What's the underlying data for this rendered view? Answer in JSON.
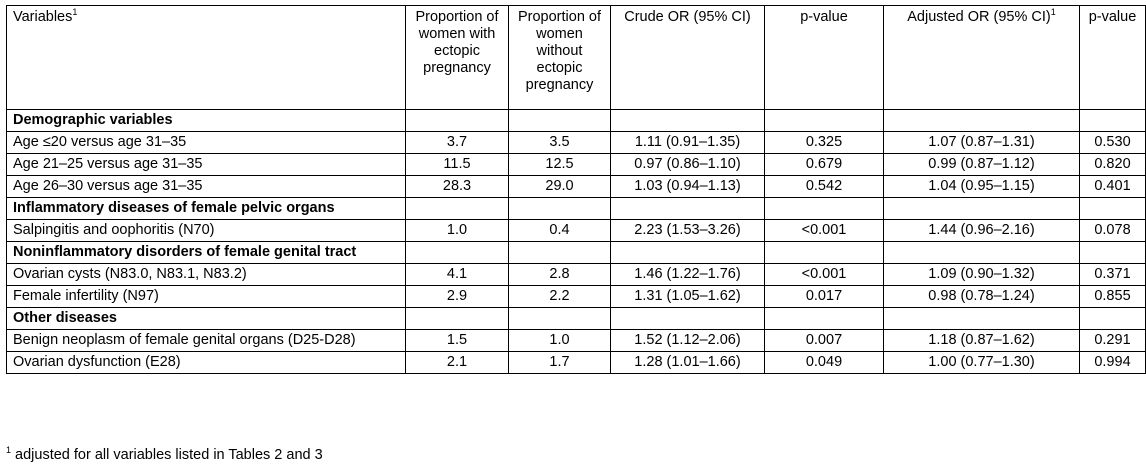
{
  "table": {
    "headers": [
      {
        "text": "Variables",
        "sup": "1"
      },
      {
        "text": "Proportion of women with ectopic pregnancy",
        "sup": ""
      },
      {
        "text": "Proportion of women without ectopic pregnancy",
        "sup": ""
      },
      {
        "text": "Crude OR (95% CI)",
        "sup": ""
      },
      {
        "text": "p-value",
        "sup": ""
      },
      {
        "text": "Adjusted OR (95% CI)",
        "sup": "1"
      },
      {
        "text": "p-value",
        "sup": ""
      }
    ],
    "rows": [
      {
        "type": "section",
        "label": "Demographic variables"
      },
      {
        "type": "data",
        "cells": [
          "Age ≤20 versus age 31–35",
          "3.7",
          "3.5",
          "1.11 (0.91–1.35)",
          "0.325",
          "1.07 (0.87–1.31)",
          "0.530"
        ]
      },
      {
        "type": "data",
        "cells": [
          "Age 21–25 versus age 31–35",
          "11.5",
          "12.5",
          "0.97 (0.86–1.10)",
          "0.679",
          "0.99 (0.87–1.12)",
          "0.820"
        ]
      },
      {
        "type": "data",
        "cells": [
          "Age 26–30 versus age 31–35",
          "28.3",
          "29.0",
          "1.03 (0.94–1.13)",
          "0.542",
          "1.04 (0.95–1.15)",
          "0.401"
        ]
      },
      {
        "type": "section",
        "label": "Inflammatory diseases of female pelvic organs"
      },
      {
        "type": "data",
        "cells": [
          "Salpingitis and oophoritis (N70)",
          "1.0",
          "0.4",
          "2.23 (1.53–3.26)",
          "<0.001",
          "1.44 (0.96–2.16)",
          "0.078"
        ]
      },
      {
        "type": "section",
        "label": "Noninflammatory disorders of female genital tract"
      },
      {
        "type": "data",
        "cells": [
          "Ovarian cysts (N83.0, N83.1, N83.2)",
          "4.1",
          "2.8",
          "1.46 (1.22–1.76)",
          "<0.001",
          "1.09 (0.90–1.32)",
          "0.371"
        ]
      },
      {
        "type": "data",
        "cells": [
          "Female infertility (N97)",
          "2.9",
          "2.2",
          "1.31 (1.05–1.62)",
          "0.017",
          "0.98 (0.78–1.24)",
          "0.855"
        ]
      },
      {
        "type": "section",
        "label": "Other diseases"
      },
      {
        "type": "data",
        "cells": [
          "Benign neoplasm of female genital organs (D25-D28)",
          "1.5",
          "1.0",
          "1.52 (1.12–2.06)",
          "0.007",
          "1.18 (0.87–1.62)",
          "0.291"
        ]
      },
      {
        "type": "data",
        "cells": [
          "Ovarian dysfunction (E28)",
          "2.1",
          "1.7",
          "1.28 (1.01–1.66)",
          "0.049",
          "1.00 (0.77–1.30)",
          "0.994"
        ]
      }
    ]
  },
  "footnote": {
    "sup": "1",
    "text": " adjusted for all variables listed in Tables 2 and 3"
  }
}
